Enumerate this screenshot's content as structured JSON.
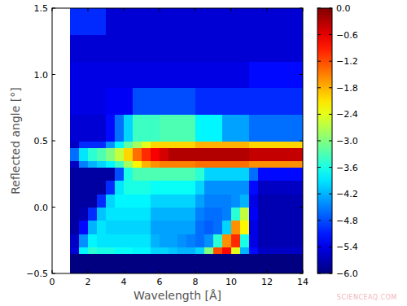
{
  "chart_data": {
    "type": "heatmap",
    "x_label": "Wavelength [Å]",
    "y_label": "Reflected angle [°]",
    "annotations": [
      "SCIENCEAQ.COM"
    ],
    "xlim": [
      0,
      14
    ],
    "ylim": [
      -0.5,
      1.5
    ],
    "xticks": [
      0,
      2,
      4,
      6,
      8,
      10,
      12,
      14
    ],
    "yticks": [
      {
        "value": -0.5,
        "label": "−0.5"
      },
      {
        "value": 0,
        "label": "0.0"
      },
      {
        "value": 0.5,
        "label": "0.5"
      },
      {
        "value": 1,
        "label": "1.0"
      },
      {
        "value": 1.5,
        "label": "1.5"
      }
    ],
    "x_bins": [
      1,
      1.5,
      2,
      2.5,
      3,
      3.5,
      4,
      4.5,
      5,
      5.5,
      6,
      6.5,
      7,
      7.5,
      8,
      8.5,
      9,
      9.5,
      10,
      10.5,
      11,
      11.5,
      12,
      12.5,
      13,
      13.5,
      14
    ],
    "y_bins": [
      -0.5,
      -0.35,
      -0.3,
      -0.2,
      -0.1,
      0,
      0.1,
      0.2,
      0.3,
      0.35,
      0.45,
      0.5,
      0.7,
      0.9,
      1.1,
      1.3,
      1.5
    ],
    "cells": [
      [
        -6,
        -6,
        -6,
        -6,
        -6,
        -6,
        -6,
        -6,
        -6,
        -6,
        -6,
        -6,
        -6,
        -6,
        -6,
        -6,
        -6,
        -6,
        -6,
        -6,
        -6,
        -6,
        -6,
        -6,
        -6,
        -6
      ],
      [
        -5.5,
        -3.8,
        -3.5,
        -3.6,
        -3.6,
        -3.7,
        -3.7,
        -3.8,
        -3.8,
        -4.0,
        -4.0,
        -4.1,
        -4.2,
        -4.2,
        -4.0,
        -3.0,
        -1.2,
        -0.8,
        -2.4,
        -4.2,
        -5.2,
        -5.6,
        -5.6,
        -5.6,
        -5.6,
        -5.6
      ],
      [
        -5.6,
        -4.4,
        -3.8,
        -3.9,
        -3.9,
        -3.9,
        -3.9,
        -3.9,
        -3.9,
        -4.2,
        -4.3,
        -4.3,
        -4.4,
        -4.5,
        -4.6,
        -4.4,
        -3.5,
        -1.6,
        -1.0,
        -3.6,
        -5.4,
        -5.7,
        -5.7,
        -5.7,
        -5.7,
        -5.7
      ],
      [
        -5.8,
        -5.2,
        -4.2,
        -3.9,
        -4.0,
        -4.0,
        -4.0,
        -4.0,
        -4.0,
        -4.3,
        -4.3,
        -4.3,
        -4.3,
        -4.3,
        -4.6,
        -4.7,
        -4.6,
        -4.0,
        -1.6,
        -2.2,
        -5.4,
        -5.7,
        -5.7,
        -5.7,
        -5.7,
        -5.7
      ],
      [
        -5.8,
        -5.7,
        -5.0,
        -4.1,
        -3.9,
        -3.9,
        -3.9,
        -3.9,
        -3.9,
        -4.2,
        -4.2,
        -4.2,
        -4.2,
        -4.2,
        -4.5,
        -4.6,
        -4.6,
        -4.5,
        -3.5,
        -2.6,
        -5.3,
        -5.7,
        -5.7,
        -5.7,
        -5.7,
        -5.7
      ],
      [
        -5.8,
        -5.8,
        -5.8,
        -5.0,
        -4.0,
        -3.8,
        -3.8,
        -3.8,
        -3.8,
        -4.0,
        -4.0,
        -4.0,
        -4.0,
        -4.0,
        -4.3,
        -4.5,
        -4.5,
        -4.5,
        -4.4,
        -4.2,
        -5.4,
        -5.7,
        -5.7,
        -5.7,
        -5.7,
        -5.7
      ],
      [
        -5.8,
        -5.8,
        -5.8,
        -5.8,
        -5.0,
        -3.9,
        -3.6,
        -3.6,
        -3.6,
        -3.7,
        -3.7,
        -3.7,
        -3.7,
        -3.7,
        -4.0,
        -4.4,
        -4.4,
        -4.4,
        -4.4,
        -4.4,
        -5.2,
        -5.6,
        -5.6,
        -5.6,
        -5.6,
        -5.6
      ],
      [
        -5.8,
        -5.8,
        -5.8,
        -5.8,
        -5.8,
        -4.8,
        -3.6,
        -3.3,
        -3.3,
        -3.3,
        -3.3,
        -3.3,
        -3.3,
        -3.3,
        -3.5,
        -4.0,
        -4.0,
        -4.0,
        -4.0,
        -4.0,
        -4.6,
        -5.2,
        -5.2,
        -5.2,
        -5.2,
        -5.2
      ],
      [
        -5.6,
        -4.5,
        -4.2,
        -4.0,
        -3.8,
        -3.4,
        -2.8,
        -2.2,
        -1.8,
        -1.6,
        -1.5,
        -1.5,
        -1.5,
        -1.5,
        -1.4,
        -1.4,
        -1.4,
        -1.4,
        -1.4,
        -1.4,
        -1.6,
        -1.6,
        -1.6,
        -1.6,
        -1.6,
        -1.6
      ],
      [
        -4.6,
        -3.9,
        -3.5,
        -3.3,
        -3.0,
        -2.6,
        -2.0,
        -1.4,
        -1.0,
        -0.7,
        -0.5,
        -0.3,
        -0.3,
        -0.3,
        -0.3,
        -0.3,
        -0.3,
        -0.3,
        -0.3,
        -0.3,
        -0.4,
        -0.4,
        -0.4,
        -0.4,
        -0.4,
        -0.4
      ],
      [
        -5.6,
        -5.0,
        -5.0,
        -5.0,
        -4.4,
        -3.8,
        -3.2,
        -2.8,
        -2.4,
        -2.0,
        -2.0,
        -2.0,
        -2.0,
        -2.0,
        -1.8,
        -1.8,
        -1.8,
        -1.8,
        -1.8,
        -1.8,
        -2.0,
        -2.0,
        -2.0,
        -2.0,
        -2.0,
        -2.0
      ],
      [
        -5.5,
        -5.5,
        -5.5,
        -5.5,
        -5.2,
        -4.6,
        -4.0,
        -3.4,
        -3.4,
        -3.4,
        -3.3,
        -3.3,
        -3.3,
        -3.3,
        -3.8,
        -3.8,
        -3.8,
        -4.3,
        -4.3,
        -4.3,
        -4.6,
        -4.6,
        -4.6,
        -4.6,
        -4.6,
        -4.6
      ],
      [
        -5.4,
        -5.4,
        -5.4,
        -5.4,
        -5.3,
        -5.3,
        -5.3,
        -4.8,
        -4.8,
        -4.8,
        -4.8,
        -4.8,
        -4.8,
        -4.8,
        -5.0,
        -5.0,
        -5.0,
        -5.0,
        -5.0,
        -5.0,
        -5.0,
        -5.0,
        -5.0,
        -5.0,
        -5.0,
        -5.0
      ],
      [
        -5.4,
        -5.4,
        -5.4,
        -5.4,
        -5.4,
        -5.4,
        -5.4,
        -5.4,
        -5.4,
        -5.4,
        -5.4,
        -5.4,
        -5.4,
        -5.4,
        -5.4,
        -5.4,
        -5.4,
        -5.4,
        -5.4,
        -5.4,
        -5.2,
        -5.2,
        -5.2,
        -5.2,
        -5.2,
        -5.2
      ],
      [
        -5.5,
        -5.5,
        -5.5,
        -5.5,
        -5.5,
        -5.5,
        -5.5,
        -5.5,
        -5.5,
        -5.5,
        -5.5,
        -5.5,
        -5.5,
        -5.5,
        -5.5,
        -5.5,
        -5.5,
        -5.5,
        -5.5,
        -5.5,
        -5.5,
        -5.5,
        -5.5,
        -5.5,
        -5.5,
        -5.5
      ],
      [
        -5.0,
        -5.0,
        -5.0,
        -5.0,
        -5.5,
        -5.5,
        -5.5,
        -5.5,
        -5.5,
        -5.5,
        -5.5,
        -5.5,
        -5.5,
        -5.5,
        -5.5,
        -5.5,
        -5.5,
        -5.5,
        -5.5,
        -5.5,
        -5.5,
        -5.5,
        -5.5,
        -5.5,
        -5.5,
        -5.5
      ]
    ],
    "clim": [
      -6,
      0
    ],
    "cticks": [
      {
        "value": 0,
        "label": "0.0"
      },
      {
        "value": -0.6,
        "label": "−0.6"
      },
      {
        "value": -1.2,
        "label": "−1.2"
      },
      {
        "value": -1.8,
        "label": "−1.8"
      },
      {
        "value": -2.4,
        "label": "−2.4"
      },
      {
        "value": -3,
        "label": "−3.0"
      },
      {
        "value": -3.6,
        "label": "−3.6"
      },
      {
        "value": -4.2,
        "label": "−4.2"
      },
      {
        "value": -4.8,
        "label": "−4.8"
      },
      {
        "value": -5.4,
        "label": "−5.4"
      },
      {
        "value": -6,
        "label": "−6.0"
      }
    ]
  }
}
